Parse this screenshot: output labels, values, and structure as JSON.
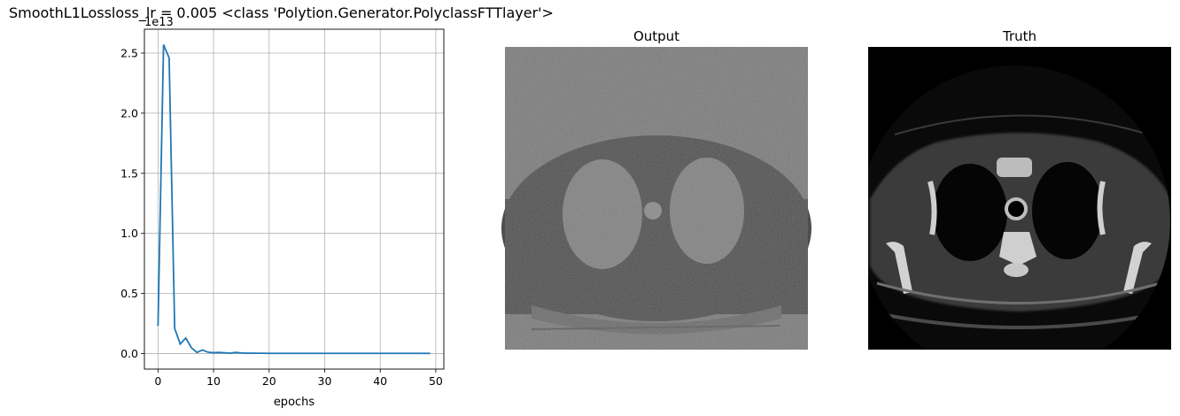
{
  "figure": {
    "suptitle": "SmoothL1Lossloss_lr = 0.005 <class 'Polytion.Generator.PolyclassFTTlayer'>",
    "panels": [
      {
        "title": "Output",
        "kind": "image",
        "description_name": "noisy-ct-reconstruction"
      },
      {
        "title": "Truth",
        "kind": "image",
        "description_name": "ground-truth-ct-slice"
      }
    ]
  },
  "chart_data": {
    "type": "line",
    "title": "",
    "xlabel": "epochs",
    "ylabel": "",
    "offset_label": "1e13",
    "scale": 10000000000000.0,
    "xlim": [
      -2.45,
      51.45
    ],
    "ylim": [
      -0.1285,
      2.6985
    ],
    "xticks": [
      0,
      10,
      20,
      30,
      40,
      50
    ],
    "yticks": [
      0.0,
      0.5,
      1.0,
      1.5,
      2.0,
      2.5
    ],
    "xtick_labels": [
      "0",
      "10",
      "20",
      "30",
      "40",
      "50"
    ],
    "ytick_labels": [
      "0.0",
      "0.5",
      "1.0",
      "1.5",
      "2.0",
      "2.5"
    ],
    "grid": true,
    "color": "#1f77b4",
    "x": [
      0,
      1,
      2,
      3,
      4,
      5,
      6,
      7,
      8,
      9,
      10,
      11,
      12,
      13,
      14,
      15,
      16,
      17,
      18,
      19,
      20,
      21,
      22,
      23,
      24,
      25,
      26,
      27,
      28,
      29,
      30,
      31,
      32,
      33,
      34,
      35,
      36,
      37,
      38,
      39,
      40,
      41,
      42,
      43,
      44,
      45,
      46,
      47,
      48,
      49
    ],
    "y": [
      0.23,
      2.57,
      2.46,
      0.21,
      0.08,
      0.13,
      0.05,
      0.01,
      0.03,
      0.012,
      0.008,
      0.01,
      0.007,
      0.004,
      0.01,
      0.006,
      0.004,
      0.004,
      0.003,
      0.003,
      0.002,
      0.002,
      0.002,
      0.002,
      0.002,
      0.002,
      0.002,
      0.002,
      0.002,
      0.002,
      0.002,
      0.002,
      0.002,
      0.002,
      0.002,
      0.002,
      0.002,
      0.002,
      0.002,
      0.002,
      0.002,
      0.002,
      0.002,
      0.002,
      0.002,
      0.002,
      0.002,
      0.002,
      0.002,
      0.002
    ]
  }
}
